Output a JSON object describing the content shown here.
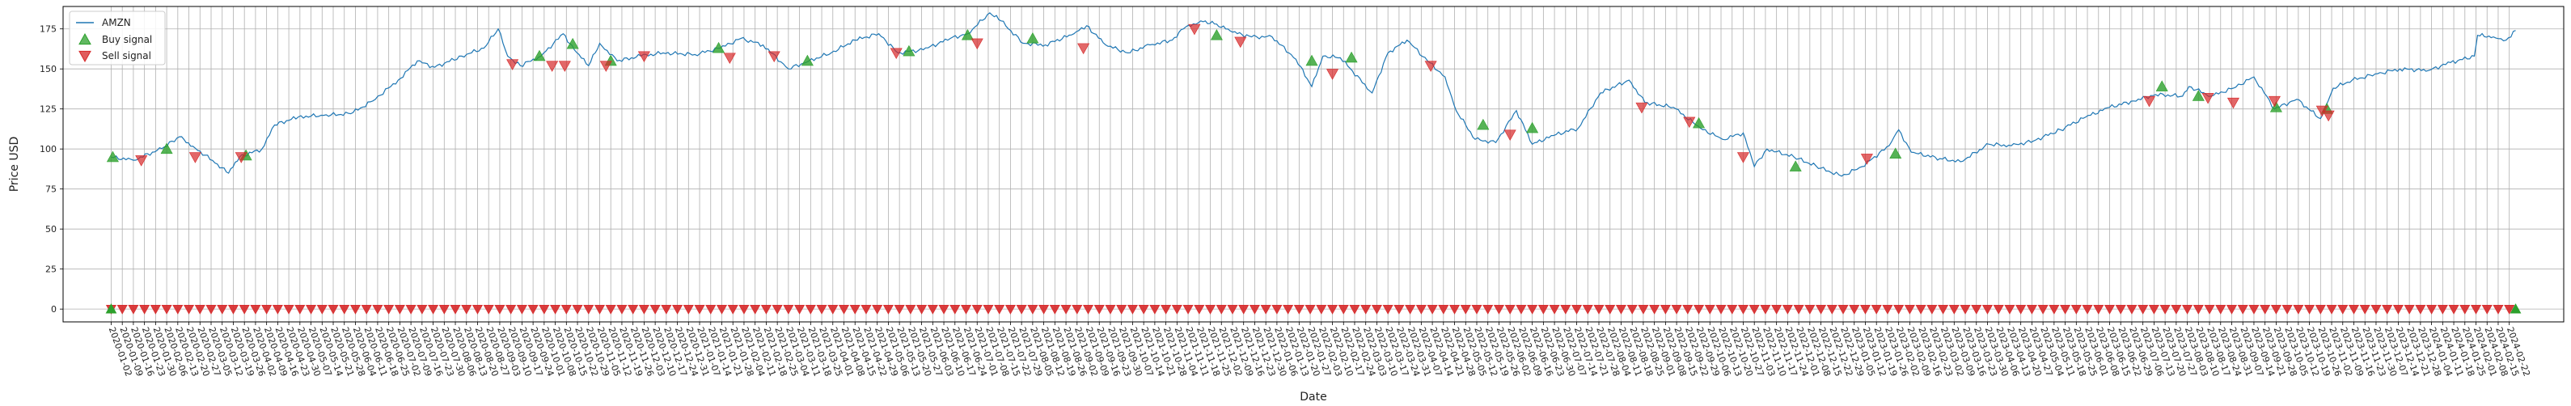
{
  "chart_data": {
    "type": "line",
    "xlabel": "Date",
    "ylabel": "Price USD",
    "ylim": [
      -8,
      189
    ],
    "yticks": [
      0,
      25,
      50,
      75,
      100,
      125,
      150,
      175
    ],
    "grid": true,
    "legend_position": "top-left",
    "legend": [
      {
        "label": "AMZN",
        "kind": "line",
        "color": "#1f77b4"
      },
      {
        "label": "Buy signal",
        "kind": "triangle-up",
        "color": "#2ca02c"
      },
      {
        "label": "Sell signal",
        "kind": "triangle-down",
        "color": "#d62728"
      }
    ],
    "x_range": [
      "2020-01-02",
      "2024-02-26"
    ],
    "tick_interval_days": 7,
    "series": [
      {
        "name": "AMZN",
        "color": "#1f77b4",
        "points": [
          [
            "2020-01-02",
            94.9
          ],
          [
            "2020-01-16",
            93.0
          ],
          [
            "2020-02-03",
            100.2
          ],
          [
            "2020-02-14",
            107.6
          ],
          [
            "2020-02-24",
            100.5
          ],
          [
            "2020-03-09",
            90.5
          ],
          [
            "2020-03-16",
            84.9
          ],
          [
            "2020-03-23",
            95.0
          ],
          [
            "2020-04-06",
            100.0
          ],
          [
            "2020-04-14",
            115.0
          ],
          [
            "2020-04-29",
            120.0
          ],
          [
            "2020-05-15",
            121.0
          ],
          [
            "2020-06-01",
            122.0
          ],
          [
            "2020-06-15",
            130.0
          ],
          [
            "2020-07-01",
            143.0
          ],
          [
            "2020-07-13",
            155.0
          ],
          [
            "2020-07-24",
            151.0
          ],
          [
            "2020-08-10",
            158.0
          ],
          [
            "2020-08-24",
            163.0
          ],
          [
            "2020-09-02",
            175.0
          ],
          [
            "2020-09-08",
            158.0
          ],
          [
            "2020-09-16",
            152.0
          ],
          [
            "2020-09-29",
            158.0
          ],
          [
            "2020-10-13",
            172.0
          ],
          [
            "2020-10-20",
            162.0
          ],
          [
            "2020-10-29",
            152.0
          ],
          [
            "2020-11-05",
            166.0
          ],
          [
            "2020-11-16",
            155.0
          ],
          [
            "2020-12-01",
            158.0
          ],
          [
            "2020-12-15",
            160.0
          ],
          [
            "2021-01-04",
            159.0
          ],
          [
            "2021-01-20",
            163.0
          ],
          [
            "2021-02-02",
            169.0
          ],
          [
            "2021-02-16",
            165.0
          ],
          [
            "2021-03-04",
            150.0
          ],
          [
            "2021-03-17",
            155.0
          ],
          [
            "2021-03-31",
            160.0
          ],
          [
            "2021-04-15",
            168.0
          ],
          [
            "2021-04-30",
            172.0
          ],
          [
            "2021-05-12",
            160.0
          ],
          [
            "2021-05-28",
            162.0
          ],
          [
            "2021-06-14",
            169.0
          ],
          [
            "2021-06-25",
            172.0
          ],
          [
            "2021-07-09",
            185.0
          ],
          [
            "2021-07-16",
            180.0
          ],
          [
            "2021-07-30",
            166.0
          ],
          [
            "2021-08-13",
            165.0
          ],
          [
            "2021-08-31",
            172.0
          ],
          [
            "2021-09-08",
            177.0
          ],
          [
            "2021-09-20",
            165.0
          ],
          [
            "2021-10-04",
            160.0
          ],
          [
            "2021-10-18",
            165.0
          ],
          [
            "2021-11-01",
            168.0
          ],
          [
            "2021-11-08",
            175.0
          ],
          [
            "2021-11-19",
            180.0
          ],
          [
            "2021-11-29",
            178.0
          ],
          [
            "2021-12-09",
            173.0
          ],
          [
            "2021-12-21",
            170.0
          ],
          [
            "2022-01-03",
            170.0
          ],
          [
            "2022-01-18",
            156.0
          ],
          [
            "2022-01-28",
            139.0
          ],
          [
            "2022-02-04",
            158.0
          ],
          [
            "2022-02-15",
            157.0
          ],
          [
            "2022-03-07",
            135.0
          ],
          [
            "2022-03-17",
            160.0
          ],
          [
            "2022-03-29",
            168.0
          ],
          [
            "2022-04-11",
            155.0
          ],
          [
            "2022-04-22",
            145.0
          ],
          [
            "2022-04-29",
            124.0
          ],
          [
            "2022-05-11",
            106.0
          ],
          [
            "2022-05-24",
            104.0
          ],
          [
            "2022-06-06",
            124.0
          ],
          [
            "2022-06-16",
            103.0
          ],
          [
            "2022-07-01",
            109.0
          ],
          [
            "2022-07-15",
            113.0
          ],
          [
            "2022-07-29",
            135.0
          ],
          [
            "2022-08-16",
            143.0
          ],
          [
            "2022-08-26",
            129.0
          ],
          [
            "2022-09-13",
            126.0
          ],
          [
            "2022-09-30",
            113.0
          ],
          [
            "2022-10-14",
            106.0
          ],
          [
            "2022-10-27",
            110.0
          ],
          [
            "2022-11-03",
            89.0
          ],
          [
            "2022-11-11",
            100.0
          ],
          [
            "2022-11-28",
            95.0
          ],
          [
            "2022-12-15",
            88.0
          ],
          [
            "2022-12-28",
            83.0
          ],
          [
            "2023-01-10",
            89.0
          ],
          [
            "2023-01-27",
            102.0
          ],
          [
            "2023-02-02",
            112.0
          ],
          [
            "2023-02-10",
            98.0
          ],
          [
            "2023-02-28",
            94.0
          ],
          [
            "2023-03-13",
            92.0
          ],
          [
            "2023-03-31",
            103.0
          ],
          [
            "2023-04-14",
            102.0
          ],
          [
            "2023-04-28",
            105.0
          ],
          [
            "2023-05-15",
            112.0
          ],
          [
            "2023-05-31",
            120.0
          ],
          [
            "2023-06-15",
            126.0
          ],
          [
            "2023-06-30",
            130.0
          ],
          [
            "2023-07-14",
            134.0
          ],
          [
            "2023-07-31",
            133.0
          ],
          [
            "2023-08-04",
            139.0
          ],
          [
            "2023-08-18",
            133.0
          ],
          [
            "2023-09-01",
            138.0
          ],
          [
            "2023-09-14",
            145.0
          ],
          [
            "2023-09-27",
            125.0
          ],
          [
            "2023-10-11",
            131.0
          ],
          [
            "2023-10-26",
            119.0
          ],
          [
            "2023-11-03",
            138.0
          ],
          [
            "2023-11-15",
            143.0
          ],
          [
            "2023-12-01",
            147.0
          ],
          [
            "2023-12-15",
            150.0
          ],
          [
            "2024-01-02",
            149.0
          ],
          [
            "2024-01-16",
            154.0
          ],
          [
            "2024-01-31",
            158.0
          ],
          [
            "2024-02-02",
            171.0
          ],
          [
            "2024-02-12",
            170.0
          ],
          [
            "2024-02-20",
            168.0
          ],
          [
            "2024-02-26",
            174.0
          ]
        ]
      }
    ],
    "buy_signals": [
      [
        "2020-01-03",
        94.9
      ],
      [
        "2020-02-06",
        100.0
      ],
      [
        "2020-03-27",
        95.9
      ],
      [
        "2020-09-28",
        158.0
      ],
      [
        "2020-10-19",
        165.5
      ],
      [
        "2020-11-12",
        155.0
      ],
      [
        "2021-01-19",
        163.0
      ],
      [
        "2021-03-16",
        155.0
      ],
      [
        "2021-05-19",
        161.0
      ],
      [
        "2021-06-25",
        171.0
      ],
      [
        "2021-08-05",
        169.0
      ],
      [
        "2021-11-29",
        171.0
      ],
      [
        "2022-01-28",
        155.0
      ],
      [
        "2022-02-22",
        157.0
      ],
      [
        "2022-05-16",
        115.0
      ],
      [
        "2022-06-16",
        113.0
      ],
      [
        "2022-09-29",
        116.0
      ],
      [
        "2022-11-29",
        89.0
      ],
      [
        "2023-01-31",
        97.0
      ],
      [
        "2023-07-18",
        139.0
      ],
      [
        "2023-08-10",
        133.0
      ],
      [
        "2023-09-28",
        126.0
      ],
      [
        "2023-10-30",
        125.0
      ]
    ],
    "sell_signals": [
      [
        "2020-01-21",
        93.0
      ],
      [
        "2020-02-24",
        95.0
      ],
      [
        "2020-03-24",
        95.0
      ],
      [
        "2020-09-11",
        153.0
      ],
      [
        "2020-10-06",
        152.0
      ],
      [
        "2020-10-14",
        152.0
      ],
      [
        "2020-11-09",
        152.0
      ],
      [
        "2020-12-03",
        158.0
      ],
      [
        "2021-01-26",
        157.0
      ],
      [
        "2021-02-23",
        158.0
      ],
      [
        "2021-05-11",
        160.0
      ],
      [
        "2021-07-01",
        166.0
      ],
      [
        "2021-09-06",
        163.0
      ],
      [
        "2021-11-15",
        175.0
      ],
      [
        "2021-12-14",
        167.0
      ],
      [
        "2022-02-10",
        147.0
      ],
      [
        "2022-04-13",
        152.0
      ],
      [
        "2022-06-02",
        109.0
      ],
      [
        "2022-08-24",
        126.0
      ],
      [
        "2022-09-23",
        117.0
      ],
      [
        "2022-10-27",
        95.0
      ],
      [
        "2023-01-13",
        94.0
      ],
      [
        "2023-07-10",
        130.0
      ],
      [
        "2023-08-16",
        132.0
      ],
      [
        "2023-09-01",
        129.0
      ],
      [
        "2023-09-27",
        130.0
      ],
      [
        "2023-10-27",
        124.0
      ],
      [
        "2023-10-31",
        121.0
      ]
    ]
  }
}
